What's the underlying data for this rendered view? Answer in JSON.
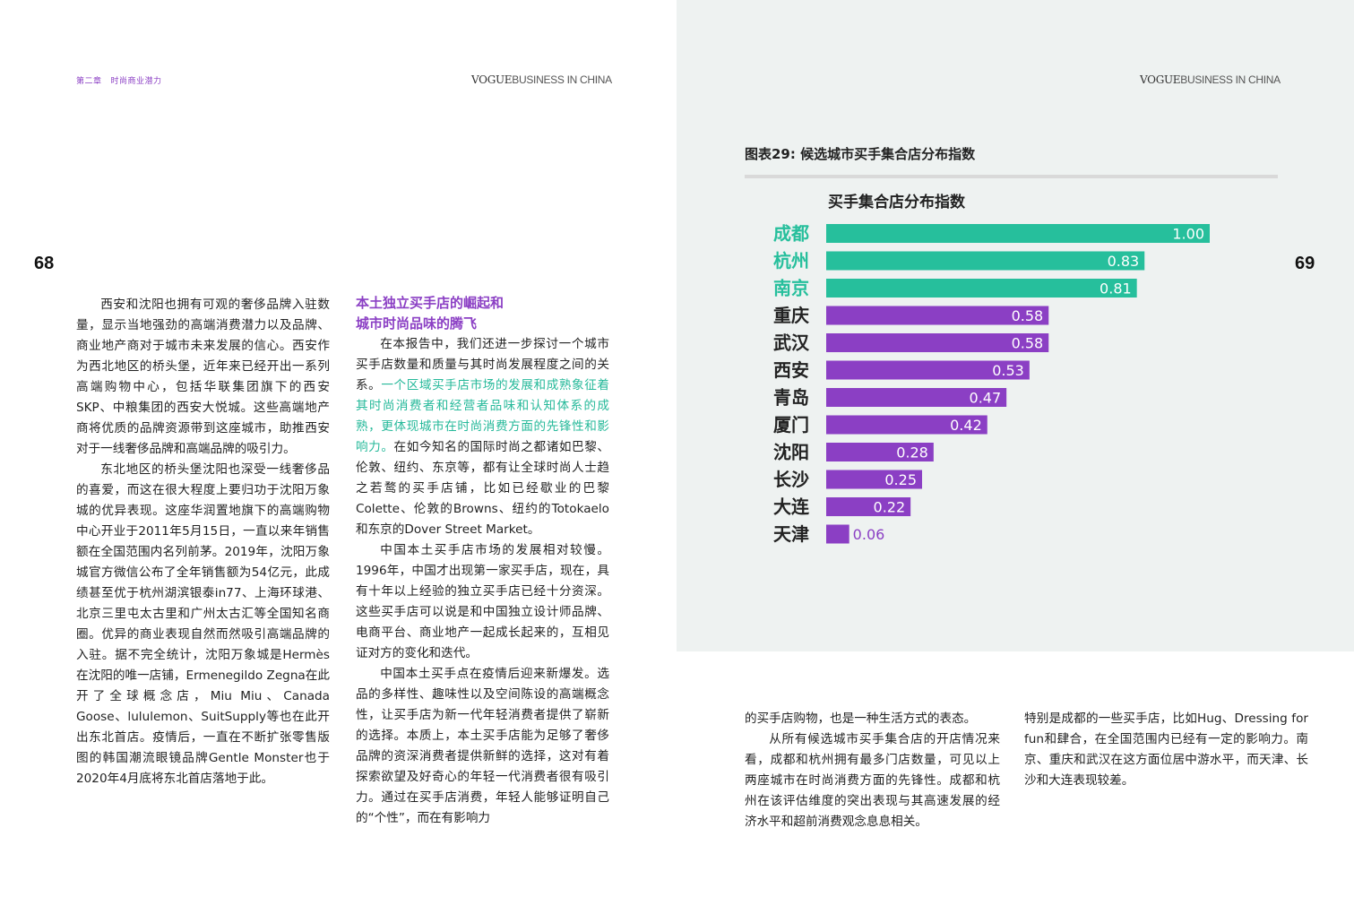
{
  "header_left": {
    "chapter": "第二章",
    "section": "时尚商业潜力",
    "masthead_bold": "VOGUE",
    "masthead_light": "BUSINESS IN CHINA"
  },
  "header_right": {
    "masthead_bold": "VOGUE",
    "masthead_light": "BUSINESS IN CHINA"
  },
  "page_numbers": {
    "left": "68",
    "right": "69"
  },
  "left_column": {
    "p1": "西安和沈阳也拥有可观的奢侈品牌入驻数量，显示当地强劲的高端消费潜力以及品牌、商业地产商对于城市未来发展的信心。西安作为西北地区的桥头堡，近年来已经开出一系列高端购物中心，包括华联集团旗下的西安SKP、中粮集团的西安大悦城。这些高端地产商将优质的品牌资源带到这座城市，助推西安对于一线奢侈品牌和高端品牌的吸引力。",
    "p2": "东北地区的桥头堡沈阳也深受一线奢侈品的喜爱，而这在很大程度上要归功于沈阳万象城的优异表现。这座华润置地旗下的高端购物中心开业于2011年5月15日，一直以来年销售额在全国范围内名列前茅。2019年，沈阳万象城官方微信公布了全年销售额为54亿元，此成绩甚至优于杭州湖滨银泰in77、上海环球港、北京三里屯太古里和广州太古汇等全国知名商圈。优异的商业表现自然而然吸引高端品牌的入驻。据不完全统计，沈阳万象城是Hermès在沈阳的唯一店铺，Ermenegildo Zegna在此开了全球概念店，Miu Miu、Canada Goose、lululemon、SuitSupply等也在此开出东北首店。疫情后，一直在不断扩张零售版图的韩国潮流眼镜品牌Gentle Monster也于2020年4月底将东北首店落地于此。"
  },
  "middle_column": {
    "subhead_line1": "本土独立买手店的崛起和",
    "subhead_line2": "城市时尚品味的腾飞",
    "p1_start": "在本报告中，我们还进一步探讨一个城市买手店数量和质量与其时尚发展程度之间的关系。",
    "p1_highlight": "一个区域买手店市场的发展和成熟象征着其时尚消费者和经营者品味和认知体系的成熟，更体现城市在时尚消费方面的先锋性和影响力。",
    "p1_end": "在如今知名的国际时尚之都诸如巴黎、伦敦、纽约、东京等，都有让全球时尚人士趋之若鹜的买手店铺，比如已经歇业的巴黎Colette、伦敦的Browns、纽约的Totokaelo和东京的Dover Street Market。",
    "p2": "中国本土买手店市场的发展相对较慢。1996年，中国才出现第一家买手店，现在，具有十年以上经验的独立买手店已经十分资深。这些买手店可以说是和中国独立设计师品牌、电商平台、商业地产一起成长起来的，互相见证对方的变化和迭代。",
    "p3": "中国本土买手点在疫情后迎来新爆发。选品的多样性、趣味性以及空间陈设的高端概念性，让买手店为新一代年轻消费者提供了崭新的选择。本质上，本土买手店能为足够了奢侈品牌的资深消费者提供新鲜的选择，这对有着探索欲望及好奇心的年轻一代消费者很有吸引力。通过在买手店消费，年轻人能够证明自己的“个性”，而在有影响力"
  },
  "figure": {
    "title": "图表29: 候选城市买手集合店分布指数",
    "chart_title": "买手集合店分布指数"
  },
  "chart_data": {
    "type": "bar",
    "orientation": "horizontal",
    "title": "买手集合店分布指数",
    "categories": [
      "成都",
      "杭州",
      "南京",
      "重庆",
      "武汉",
      "西安",
      "青岛",
      "厦门",
      "沈阳",
      "长沙",
      "大连",
      "天津"
    ],
    "values": [
      1.0,
      0.83,
      0.81,
      0.58,
      0.58,
      0.53,
      0.47,
      0.42,
      0.28,
      0.25,
      0.22,
      0.06
    ],
    "value_labels": [
      "1.00",
      "0.83",
      "0.81",
      "0.58",
      "0.58",
      "0.53",
      "0.47",
      "0.42",
      "0.28",
      "0.25",
      "0.22",
      "0.06"
    ],
    "highlight_count": 3,
    "colors": {
      "highlight": "#26bf9c",
      "default": "#8b3fc4"
    },
    "xlim": [
      0,
      1.0
    ]
  },
  "bottom_right_col1": {
    "p0": "的买手店购物，也是一种生活方式的表态。",
    "p1": "从所有候选城市买手集合店的开店情况来看，成都和杭州拥有最多门店数量，可见以上两座城市在时尚消费方面的先锋性。成都和杭州在该评估维度的突出表现与其高速发展的经济水平和超前消费观念息息相关。"
  },
  "bottom_right_col2": {
    "p1": "特别是成都的一些买手店，比如Hug、Dressing for fun和肆合，在全国范围内已经有一定的影响力。南京、重庆和武汉在这方面位居中游水平，而天津、长沙和大连表现较差。"
  }
}
